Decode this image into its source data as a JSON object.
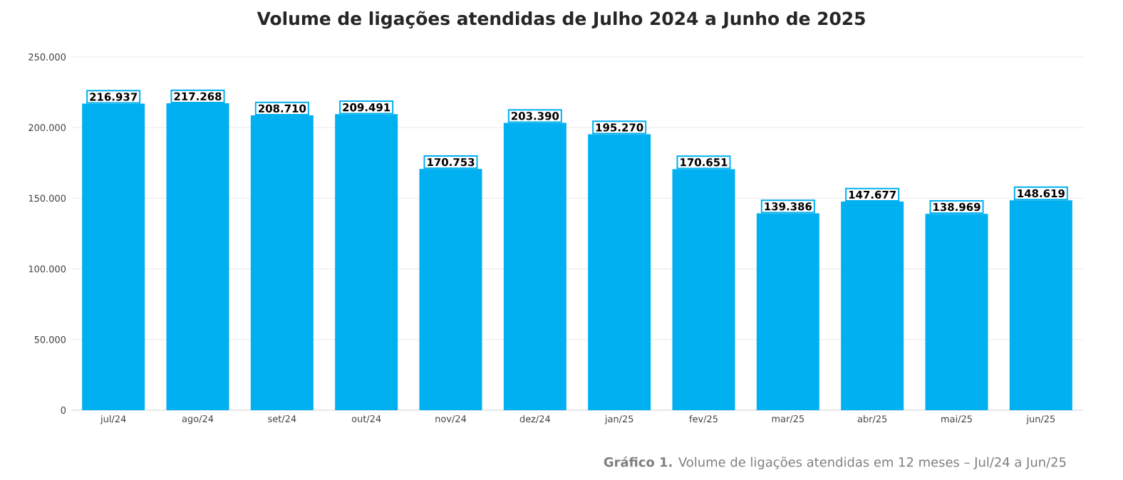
{
  "chart_data": {
    "type": "bar",
    "title": "Volume de ligações atendidas de Julho 2024 a Junho de 2025",
    "categories": [
      "jul/24",
      "ago/24",
      "set/24",
      "out/24",
      "nov/24",
      "dez/24",
      "jan/25",
      "fev/25",
      "mar/25",
      "abr/25",
      "mai/25",
      "jun/25"
    ],
    "values": [
      216937,
      217268,
      208710,
      209491,
      170753,
      203390,
      195270,
      170651,
      139386,
      147677,
      138969,
      148619
    ],
    "value_labels": [
      "216.937",
      "217.268",
      "208.710",
      "209.491",
      "170.753",
      "203.390",
      "195.270",
      "170.651",
      "139.386",
      "147.677",
      "138.969",
      "148.619"
    ],
    "color": "#00b0f0",
    "ylim": [
      0,
      250000
    ],
    "yticks": [
      {
        "value": 0,
        "label": "0"
      },
      {
        "value": 50000,
        "label": "50.000"
      },
      {
        "value": 100000,
        "label": "100.000"
      },
      {
        "value": 150000,
        "label": "150.000"
      },
      {
        "value": 200000,
        "label": "200.000"
      },
      {
        "value": 250000,
        "label": "250.000"
      }
    ],
    "grid": "y",
    "annotations": [
      "**Gráfico 1.** Volume de ligações atendidas em 12 meses – Jul/24 a Jun/25"
    ]
  }
}
